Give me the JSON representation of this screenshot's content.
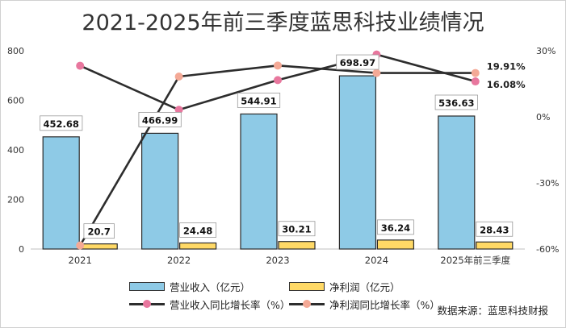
{
  "title": "2021-2025年前三季度蓝思科技业绩情况",
  "source": "数据来源：蓝思科技财报",
  "colors": {
    "revenue_bar": "#8ecae6",
    "revenue_bar_stroke": "#2b2b2b",
    "profit_bar": "#ffd966",
    "profit_bar_stroke": "#2b2b2b",
    "line": "#2d2d2d",
    "revenue_growth_marker": "#e8779e",
    "profit_growth_marker": "#f4a996",
    "axis": "#bfbfbf"
  },
  "legend": {
    "revenue": "营业收入（亿元）",
    "profit": "净利润（亿元）",
    "revenue_growth": "营业收入同比增长率（%）",
    "profit_growth": "净利润同比增长率（%）"
  },
  "chart_data": {
    "type": "bar",
    "title": "2021-2025年前三季度蓝思科技业绩情况",
    "categories": [
      "2021",
      "2022",
      "2023",
      "2024",
      "2025年前三季度"
    ],
    "y_left": {
      "min": 0,
      "max": 800,
      "ticks": [
        "0",
        "200",
        "400",
        "600",
        "800"
      ]
    },
    "y_right": {
      "min": -60,
      "max": 30,
      "ticks": [
        "-60%",
        "-30%",
        "0%",
        "30%"
      ]
    },
    "series": [
      {
        "name": "营业收入（亿元）",
        "type": "bar",
        "axis": "left",
        "values": [
          452.68,
          466.99,
          544.91,
          698.97,
          536.63
        ],
        "labels": [
          "452.68",
          "466.99",
          "544.91",
          "698.97",
          "536.63"
        ]
      },
      {
        "name": "净利润（亿元）",
        "type": "bar",
        "axis": "left",
        "values": [
          20.7,
          24.48,
          30.21,
          36.24,
          28.43
        ],
        "labels": [
          "20.7",
          "24.48",
          "30.21",
          "36.24",
          "28.43"
        ]
      },
      {
        "name": "营业收入同比增长率（%）",
        "type": "line",
        "axis": "right",
        "values": [
          23.2,
          3.2,
          16.7,
          28.3,
          16.08
        ],
        "end_label": "16.08%"
      },
      {
        "name": "净利润同比增长率（%）",
        "type": "line",
        "axis": "right",
        "values": [
          -58.4,
          18.3,
          23.3,
          19.9,
          19.91
        ],
        "end_label": "19.91%"
      }
    ]
  }
}
